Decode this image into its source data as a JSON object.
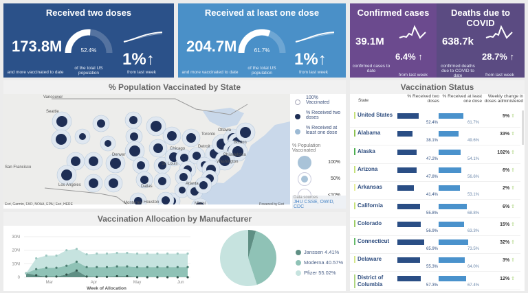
{
  "cards": [
    {
      "title": "Received two doses",
      "value": "173.8M",
      "value_caption": "and more vaccinated to date",
      "gauge_pct": 52.4,
      "gauge_label": "52.4%",
      "gauge_caption": "of the total US population",
      "change": "1%",
      "change_caption": "from last week",
      "color": "#2b5189"
    },
    {
      "title": "Received at least one dose",
      "value": "204.7M",
      "value_caption": "and more vaccinated to date",
      "gauge_pct": 61.7,
      "gauge_label": "61.7%",
      "gauge_caption": "of the total US population",
      "change": "1%",
      "change_caption": "from last week",
      "color": "#4a90c8"
    },
    {
      "title": "Confirmed cases",
      "value": "39.1M",
      "value_caption": "confirmed cases to date",
      "change": "6.4%",
      "change_caption": "from last week",
      "color": "#6b4a8e"
    },
    {
      "title": "Deaths due to COVID",
      "value": "638.7k",
      "value_caption": "confirmed deaths due to COVID to date",
      "change": "28.7%",
      "change_caption": "from last week",
      "color": "#5b4b82"
    }
  ],
  "map": {
    "title": "% Population Vaccinated by State",
    "cities": [
      "Vancouver",
      "Seattle",
      "San Francisco",
      "Los Angeles",
      "Denver",
      "Dallas",
      "Houston",
      "Chicago",
      "St. Louis",
      "Detroit",
      "Toronto",
      "Ottawa",
      "Atlanta",
      "Philadelphia",
      "Washington",
      "Boston",
      "Monterrey",
      "Miami"
    ],
    "legend": {
      "items": [
        "100% Vaccinated",
        "% Received two doses",
        "% Received at least one dose"
      ],
      "size_title": "% Population Vaccinated",
      "sizes": [
        "100%",
        "50%",
        "<10%"
      ]
    },
    "attribution": "Esri, Garmin, FAO, NOAA, EPA | Esri, HERE",
    "powered": "Powered by Esri",
    "sources_label": "Data sources",
    "sources": "JHU CSSE, OWID, CDC"
  },
  "manufacturer": {
    "title": "Vaccination Allocation by Manufacturer",
    "chart_data": {
      "type": "area",
      "stacked": true,
      "xlabel": "Week of Allocation",
      "ylabel": "",
      "x": [
        "Feb 15",
        "Feb 22",
        "Mar 1",
        "Mar 8",
        "Mar 15",
        "Mar 22",
        "Mar 29",
        "Apr 5",
        "Apr 12",
        "Apr 19",
        "Apr 26",
        "May 3",
        "May 10",
        "May 17",
        "May 24",
        "May 31",
        "Jun 7"
      ],
      "xticks": [
        "Mar",
        "Apr",
        "May",
        "Jun"
      ],
      "yticks": [
        "0",
        "10M",
        "20M",
        "30M"
      ],
      "ylim": [
        0,
        30000000
      ],
      "series": [
        {
          "name": "Janssen",
          "color": "#5f8f84",
          "values": [
            3000000,
            1500000,
            500000,
            500000,
            2000000,
            5000000,
            500000,
            300000,
            300000,
            800000,
            800000,
            0,
            0,
            0,
            0,
            0,
            0
          ]
        },
        {
          "name": "Moderna",
          "color": "#8fc2b6",
          "values": [
            0,
            4500000,
            6500000,
            6500000,
            6500000,
            6500000,
            7000000,
            7200000,
            7200000,
            7200000,
            7200000,
            7500000,
            7500000,
            7500000,
            7500000,
            7500000,
            7500000
          ]
        },
        {
          "name": "Pfizer",
          "color": "#c6e3df",
          "values": [
            0,
            8000000,
            9000000,
            9000000,
            11500000,
            9500000,
            9500000,
            10000000,
            10000000,
            10000000,
            10000000,
            10000000,
            10000000,
            10000000,
            10000000,
            10000000,
            10000000
          ]
        }
      ]
    },
    "pie_data": {
      "type": "pie",
      "slices": [
        {
          "name": "Janssen",
          "value": 4.41,
          "label": "Janssen 4.41%",
          "color": "#5f8f84"
        },
        {
          "name": "Moderna",
          "value": 40.57,
          "label": "Moderna 40.57%",
          "color": "#8fc2b6"
        },
        {
          "name": "Pfizer",
          "value": 55.02,
          "label": "Pfizer 55.02%",
          "color": "#c6e3df"
        }
      ]
    }
  },
  "status": {
    "title": "Vaccination Status",
    "headers": [
      "State",
      "% Received two doses",
      "% Received at least one dose",
      "Weekly change in doses administered"
    ],
    "rows": [
      {
        "state": "United States",
        "two": 52.4,
        "two_label": "52.4%",
        "one": 61.7,
        "one_label": "61.7%",
        "weekly": "5%",
        "ind": "#c5e17a"
      },
      {
        "state": "Alabama",
        "two": 38.1,
        "two_label": "38.1%",
        "one": 49.6,
        "one_label": "49.6%",
        "weekly": "33%",
        "ind": "#8cc152"
      },
      {
        "state": "Alaska",
        "two": 47.2,
        "two_label": "47.2%",
        "one": 54.1,
        "one_label": "54.1%",
        "weekly": "102%",
        "ind": "#4caf50"
      },
      {
        "state": "Arizona",
        "two": 47.8,
        "two_label": "47.8%",
        "one": 56.6,
        "one_label": "56.6%",
        "weekly": "6%",
        "ind": "#c5e17a"
      },
      {
        "state": "Arkansas",
        "two": 41.4,
        "two_label": "41.4%",
        "one": 53.1,
        "one_label": "53.1%",
        "weekly": "2%",
        "ind": "#e6ee9c"
      },
      {
        "state": "California",
        "two": 55.8,
        "two_label": "55.8%",
        "one": 68.8,
        "one_label": "68.8%",
        "weekly": "6%",
        "ind": "#c5e17a"
      },
      {
        "state": "Colorado",
        "two": 56.9,
        "two_label": "56.9%",
        "one": 63.3,
        "one_label": "63.3%",
        "weekly": "15%",
        "ind": "#9ccc65"
      },
      {
        "state": "Connecticut",
        "two": 65.9,
        "two_label": "65.9%",
        "one": 73.5,
        "one_label": "73.5%",
        "weekly": "32%",
        "ind": "#66bb6a"
      },
      {
        "state": "Delaware",
        "two": 55.3,
        "two_label": "55.3%",
        "one": 64.0,
        "one_label": "64.0%",
        "weekly": "3%",
        "ind": "#d4e68a"
      },
      {
        "state": "District of Columbia",
        "two": 57.3,
        "two_label": "57.3%",
        "one": 67.4,
        "one_label": "67.4%",
        "weekly": "12%",
        "ind": "#aed581"
      }
    ]
  }
}
